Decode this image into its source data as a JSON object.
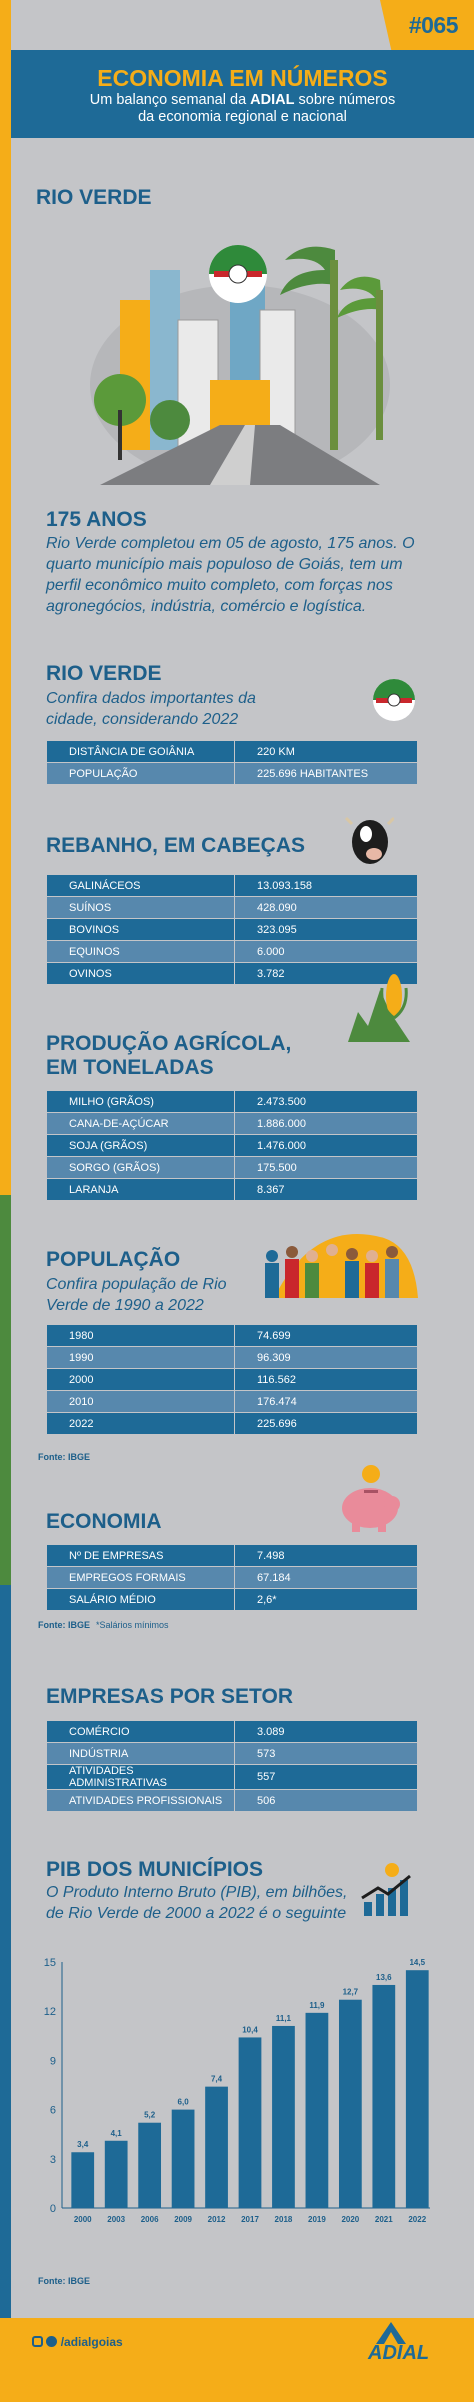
{
  "header": {
    "number": "#065",
    "title": "ECONOMIA EM NÚMEROS",
    "subtitle_before": "Um balanço semanal da ",
    "subtitle_brand": "ADIAL",
    "subtitle_after": " sobre números",
    "subtitle_line2": "da economia regional e nacional"
  },
  "hero": {
    "title": "RIO VERDE"
  },
  "anniversary": {
    "title": "175 ANOS",
    "text": "Rio Verde completou em 05 de agosto, 175 anos. O quarto município mais populoso de Goiás, tem um perfil econômico muito completo, com forças nos agronegócios, indústria, comércio e logística."
  },
  "city_data": {
    "title": "RIO VERDE",
    "subtitle": "Confira dados importantes da cidade, considerando 2022",
    "rows": [
      {
        "label": "DISTÂNCIA DE GOIÂNIA",
        "value": "220 KM"
      },
      {
        "label": "POPULAÇÃO",
        "value": "225.696 HABITANTES"
      }
    ]
  },
  "herd": {
    "title": "REBANHO, EM CABEÇAS",
    "rows": [
      {
        "label": "GALINÁCEOS",
        "value": "13.093.158"
      },
      {
        "label": "SUÍNOS",
        "value": "428.090"
      },
      {
        "label": "BOVINOS",
        "value": "323.095"
      },
      {
        "label": "EQUINOS",
        "value": "6.000"
      },
      {
        "label": "OVINOS",
        "value": "3.782"
      }
    ]
  },
  "agro": {
    "title_line1": "PRODUÇÃO AGRÍCOLA,",
    "title_line2": "EM TONELADAS",
    "rows": [
      {
        "label": "MILHO (GRÃOS)",
        "value": "2.473.500"
      },
      {
        "label": "CANA-DE-AÇÚCAR",
        "value": "1.886.000"
      },
      {
        "label": "SOJA (GRÃOS)",
        "value": "1.476.000"
      },
      {
        "label": "SORGO (GRÃOS)",
        "value": "175.500"
      },
      {
        "label": "LARANJA",
        "value": "8.367"
      }
    ]
  },
  "population": {
    "title": "POPULAÇÃO",
    "subtitle": "Confira população de Rio Verde de 1990 a 2022",
    "rows": [
      {
        "label": "1980",
        "value": "74.699"
      },
      {
        "label": "1990",
        "value": "96.309"
      },
      {
        "label": "2000",
        "value": "116.562"
      },
      {
        "label": "2010",
        "value": "176.474"
      },
      {
        "label": "2022",
        "value": "225.696"
      }
    ],
    "source": "Fonte: IBGE"
  },
  "economy": {
    "title": "ECONOMIA",
    "rows": [
      {
        "label": "Nº DE EMPRESAS",
        "value": "7.498"
      },
      {
        "label": "EMPREGOS FORMAIS",
        "value": "67.184"
      },
      {
        "label": "SALÁRIO MÉDIO",
        "value": "2,6*"
      }
    ],
    "source": "Fonte: IBGE",
    "note": "*Salários mínimos"
  },
  "sectors": {
    "title": "EMPRESAS POR SETOR",
    "rows": [
      {
        "label": "COMÉRCIO",
        "value": "3.089"
      },
      {
        "label": "INDÚSTRIA",
        "value": "573"
      },
      {
        "label": "ATIVIDADES ADMINISTRATIVAS",
        "value": "557"
      },
      {
        "label": "ATIVIDADES PROFISSIONAIS",
        "value": "506"
      }
    ]
  },
  "pib": {
    "title": "PIB DOS MUNICÍPIOS",
    "subtitle": "O Produto Interno Bruto (PIB), em bilhões, de Rio Verde de 2000 a 2022 é o seguinte",
    "source": "Fonte: IBGE"
  },
  "chart_data": {
    "type": "bar",
    "categories": [
      "2000",
      "2003",
      "2006",
      "2009",
      "2012",
      "2017",
      "2018",
      "2019",
      "2020",
      "2021",
      "2022"
    ],
    "values": [
      3.4,
      4.1,
      5.2,
      6.0,
      7.4,
      10.4,
      11.1,
      11.9,
      12.7,
      13.6,
      14.5
    ],
    "value_labels": [
      "3,4",
      "4,1",
      "5,2",
      "6,0",
      "7,4",
      "10,4",
      "11,1",
      "11,9",
      "12,7",
      "13,6",
      "14,5"
    ],
    "yticks": [
      0,
      3,
      6,
      9,
      12,
      15
    ],
    "ylim": [
      0,
      15
    ],
    "grid": false,
    "bar_color": "#1e6a97"
  },
  "footer": {
    "handle": "/adialgoias",
    "logo": "ADIAL",
    "icons": [
      "instagram-icon",
      "facebook-icon"
    ]
  },
  "colors": {
    "blue": "#1e6a97",
    "light_blue": "#5788ad",
    "orange": "#f5ad18",
    "green": "#4d8a3e",
    "background": "#c4c5c8"
  }
}
